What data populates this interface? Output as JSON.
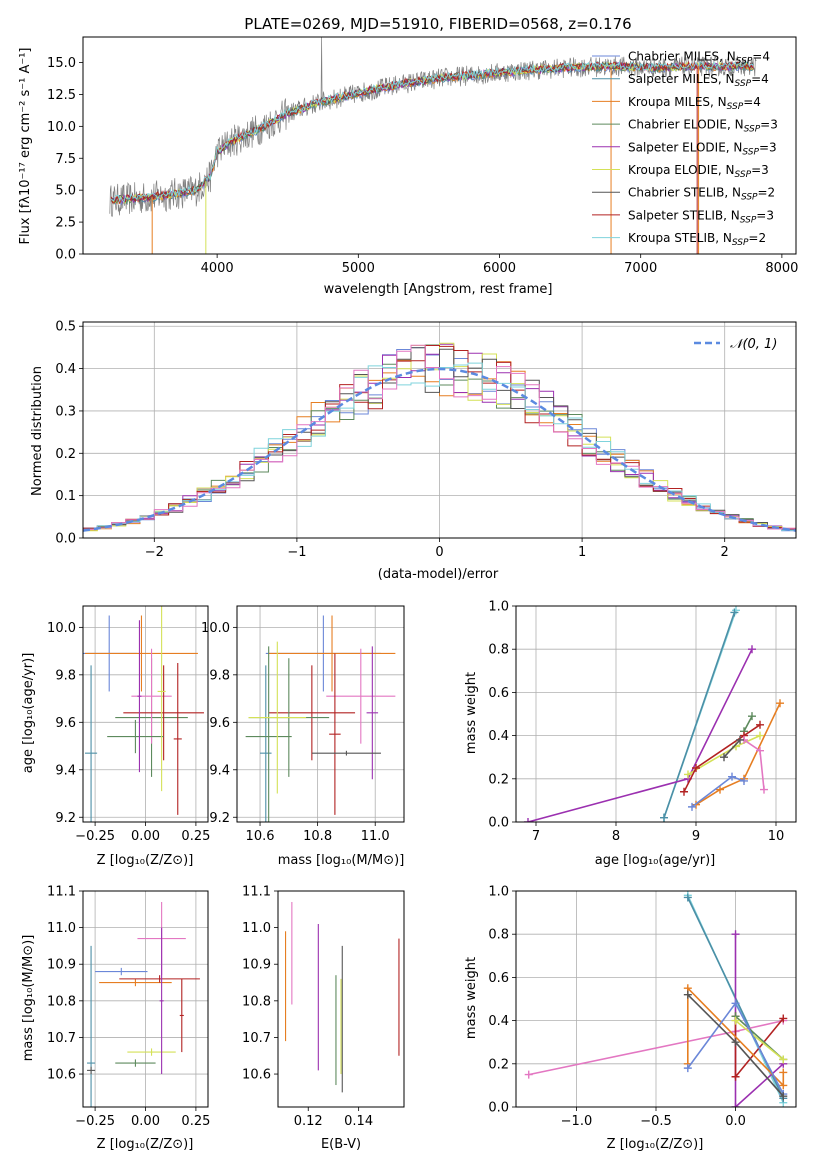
{
  "chart_data": [
    {
      "id": "spectrum",
      "type": "line",
      "title": "PLATE=0269, MJD=51910, FIBERID=0568, z=0.176",
      "xlabel": "wavelength [Angstrom, rest frame]",
      "ylabel": "Flux [fλ10⁻¹⁷ erg cm⁻² s⁻¹ A⁻¹]",
      "xlim": [
        3050,
        8100
      ],
      "ylim": [
        0,
        17
      ],
      "xticks": [
        4000,
        5000,
        6000,
        7000,
        8000
      ],
      "yticks": [
        0.0,
        2.5,
        5.0,
        7.5,
        10.0,
        12.5,
        15.0
      ],
      "legend_position": "upper-right",
      "data_color": "#808080",
      "continuum": {
        "x": [
          3250,
          3500,
          3700,
          3850,
          3950,
          4000,
          4100,
          4300,
          4500,
          4700,
          5000,
          5300,
          5600,
          5900,
          6200,
          6500,
          6800,
          7100,
          7400,
          7800
        ],
        "y": [
          4.2,
          4.4,
          4.7,
          5.0,
          6.0,
          8.0,
          8.8,
          9.8,
          11.0,
          11.8,
          12.6,
          13.3,
          13.8,
          14.1,
          14.4,
          14.6,
          14.7,
          14.6,
          14.7,
          14.7
        ]
      },
      "series": [
        {
          "name": "Chabrier MILES, N_SSP=4",
          "color": "#6b87d8"
        },
        {
          "name": "Salpeter MILES, N_SSP=4",
          "color": "#4c8fa6"
        },
        {
          "name": "Kroupa MILES, N_SSP=4",
          "color": "#e67e22"
        },
        {
          "name": "Chabrier ELODIE, N_SSP=3",
          "color": "#5d8a5d"
        },
        {
          "name": "Salpeter ELODIE, N_SSP=3",
          "color": "#9b30b0"
        },
        {
          "name": "Kroupa ELODIE, N_SSP=3",
          "color": "#d4e157"
        },
        {
          "name": "Chabrier STELIB, N_SSP=2",
          "color": "#555555"
        },
        {
          "name": "Salpeter STELIB, N_SSP=3",
          "color": "#b22222"
        },
        {
          "name": "Kroupa STELIB, N_SSP=2",
          "color": "#7fd3dc"
        }
      ]
    },
    {
      "id": "residuals",
      "type": "line",
      "xlabel": "(data-model)/error",
      "ylabel": "Normed distribution",
      "xlim": [
        -2.5,
        2.5
      ],
      "ylim": [
        0,
        0.51
      ],
      "xticks": [
        -2,
        -1,
        0,
        1,
        2
      ],
      "yticks": [
        0.0,
        0.1,
        0.2,
        0.3,
        0.4,
        0.5
      ],
      "grid": true,
      "legend_position": "upper-right",
      "gaussian": {
        "name": "𝒩(0, 1)",
        "color": "#5b8ae0"
      },
      "bin_width": 0.1,
      "colors": [
        "#6b87d8",
        "#e67e22",
        "#5d8a5d",
        "#9b30b0",
        "#d4e157",
        "#555555",
        "#b22222",
        "#7fd3dc",
        "#e377c2"
      ]
    },
    {
      "id": "age_vs_Z",
      "type": "scatter",
      "xlabel": "Z [log₁₀(Z/Z⊙)]",
      "ylabel": "age  [log₁₀(age/yr)]",
      "xlim": [
        -0.31,
        0.31
      ],
      "ylim": [
        9.18,
        10.09
      ],
      "xticks": [
        -0.25,
        0.0,
        0.25
      ],
      "xticklabels": [
        "−0.25",
        "0.00",
        "0.25"
      ],
      "yticks": [
        9.2,
        9.4,
        9.6,
        9.8,
        10.0
      ],
      "grid": true,
      "points": [
        {
          "x": -0.18,
          "y": 9.89,
          "xerr": 0.14,
          "yerr": 0.16,
          "color": "#6b87d8"
        },
        {
          "x": -0.02,
          "y": 9.89,
          "xerr": 0.28,
          "yerr": 0.16,
          "color": "#e67e22"
        },
        {
          "x": 0.03,
          "y": 9.62,
          "xerr": 0.18,
          "yerr": 0.25,
          "color": "#5d8a5d"
        },
        {
          "x": 0.03,
          "y": 9.71,
          "xerr": 0.1,
          "yerr": 0.2,
          "color": "#e377c2"
        },
        {
          "x": 0.09,
          "y": 9.64,
          "xerr": 0.2,
          "yerr": 0.2,
          "color": "#b22222"
        },
        {
          "x": -0.27,
          "y": 9.47,
          "xerr": 0.03,
          "yerr": 0.37,
          "color": "#4c8fa6"
        },
        {
          "x": -0.05,
          "y": 9.54,
          "xerr": 0.14,
          "yerr": 0.07,
          "color": "#5d8a5d"
        },
        {
          "x": 0.08,
          "y": 9.73,
          "xerr": 0.02,
          "yerr": 0.42,
          "color": "#d4e157"
        },
        {
          "x": 0.16,
          "y": 9.53,
          "xerr": 0.02,
          "yerr": 0.32,
          "color": "#b22222"
        },
        {
          "x": -0.03,
          "y": 9.71,
          "xerr": 0.01,
          "yerr": 0.32,
          "color": "#9b30b0"
        }
      ]
    },
    {
      "id": "age_vs_mass",
      "type": "scatter",
      "xlabel": "mass [log₁₀(M/M⊙)]",
      "ylabel": "",
      "xlim": [
        10.52,
        11.1
      ],
      "ylim": [
        9.18,
        10.09
      ],
      "xticks": [
        10.6,
        10.8,
        11.0
      ],
      "yticks": [
        9.2,
        9.4,
        9.6,
        9.8,
        10.0
      ],
      "grid": true,
      "points": [
        {
          "x": 10.82,
          "y": 9.89,
          "xerr": 0.2,
          "yerr": 0.16,
          "color": "#6b87d8"
        },
        {
          "x": 10.85,
          "y": 9.89,
          "xerr": 0.22,
          "yerr": 0.16,
          "color": "#e67e22"
        },
        {
          "x": 10.95,
          "y": 9.71,
          "xerr": 0.12,
          "yerr": 0.2,
          "color": "#e377c2"
        },
        {
          "x": 10.78,
          "y": 9.64,
          "xerr": 0.15,
          "yerr": 0.2,
          "color": "#b22222"
        },
        {
          "x": 10.7,
          "y": 9.62,
          "xerr": 0.14,
          "yerr": 0.25,
          "color": "#5d8a5d"
        },
        {
          "x": 10.62,
          "y": 9.47,
          "xerr": 0.02,
          "yerr": 0.37,
          "color": "#4c8fa6"
        },
        {
          "x": 10.63,
          "y": 9.54,
          "xerr": 0.08,
          "yerr": 0.38,
          "color": "#5d8a5d"
        },
        {
          "x": 10.66,
          "y": 9.62,
          "xerr": 0.1,
          "yerr": 0.32,
          "color": "#d4e157"
        },
        {
          "x": 10.86,
          "y": 9.55,
          "xerr": 0.02,
          "yerr": 0.34,
          "color": "#b22222"
        },
        {
          "x": 10.99,
          "y": 9.64,
          "xerr": 0.02,
          "yerr": 0.28,
          "color": "#9b30b0"
        },
        {
          "x": 10.9,
          "y": 9.47,
          "xerr": 0.12,
          "yerr": 0.01,
          "color": "#555555"
        }
      ]
    },
    {
      "id": "weight_vs_age",
      "type": "line",
      "xlabel": "age  [log₁₀(age/yr)]",
      "ylabel": "mass weight",
      "xlim": [
        6.75,
        10.25
      ],
      "ylim": [
        0,
        1.0
      ],
      "xticks": [
        7,
        8,
        9,
        10
      ],
      "yticks": [
        0.0,
        0.2,
        0.4,
        0.6,
        0.8,
        1.0
      ],
      "grid": true,
      "series": [
        {
          "color": "#7fd3dc",
          "x": [
            8.6,
            9.5
          ],
          "y": [
            0.02,
            0.98
          ]
        },
        {
          "color": "#4c8fa6",
          "x": [
            8.6,
            9.48
          ],
          "y": [
            0.02,
            0.97
          ]
        },
        {
          "color": "#9b30b0",
          "x": [
            6.9,
            8.9,
            9.7
          ],
          "y": [
            0.0,
            0.2,
            0.8
          ]
        },
        {
          "color": "#d4e157",
          "x": [
            8.9,
            9.5,
            9.8
          ],
          "y": [
            0.22,
            0.35,
            0.4
          ]
        },
        {
          "color": "#5d8a5d",
          "x": [
            9.6,
            9.7
          ],
          "y": [
            0.42,
            0.49
          ]
        },
        {
          "color": "#b22222",
          "x": [
            8.85,
            9.0,
            9.6,
            9.8
          ],
          "y": [
            0.14,
            0.25,
            0.4,
            0.45
          ]
        },
        {
          "color": "#e67e22",
          "x": [
            9.0,
            9.3,
            9.6,
            10.05
          ],
          "y": [
            0.08,
            0.15,
            0.2,
            0.55
          ]
        },
        {
          "color": "#6b87d8",
          "x": [
            8.95,
            9.45,
            9.6
          ],
          "y": [
            0.07,
            0.21,
            0.19
          ]
        },
        {
          "color": "#e377c2",
          "x": [
            9.6,
            9.8,
            9.85
          ],
          "y": [
            0.38,
            0.33,
            0.15
          ]
        },
        {
          "color": "#555555",
          "x": [
            9.35,
            9.55
          ],
          "y": [
            0.3,
            0.38
          ]
        }
      ]
    },
    {
      "id": "mass_vs_Z",
      "type": "scatter",
      "xlabel": "Z [log₁₀(Z/Z⊙)]",
      "ylabel": "mass [log₁₀(M/M⊙)]",
      "xlim": [
        -0.31,
        0.31
      ],
      "ylim": [
        10.51,
        11.1
      ],
      "xticks": [
        -0.25,
        0.0,
        0.25
      ],
      "xticklabels": [
        "−0.25",
        "0.00",
        "0.25"
      ],
      "yticks": [
        10.6,
        10.7,
        10.8,
        10.9,
        11.0,
        11.1
      ],
      "grid": true,
      "points": [
        {
          "x": -0.12,
          "y": 10.88,
          "xerr": 0.13,
          "yerr": 0.01,
          "color": "#6b87d8"
        },
        {
          "x": -0.05,
          "y": 10.85,
          "xerr": 0.18,
          "yerr": 0.01,
          "color": "#e67e22"
        },
        {
          "x": 0.07,
          "y": 10.86,
          "xerr": 0.2,
          "yerr": 0.01,
          "color": "#b22222"
        },
        {
          "x": 0.08,
          "y": 10.97,
          "xerr": 0.12,
          "yerr": 0.1,
          "color": "#e377c2"
        },
        {
          "x": -0.27,
          "y": 10.63,
          "xerr": 0.02,
          "yerr": 0.32,
          "color": "#4c8fa6"
        },
        {
          "x": -0.05,
          "y": 10.63,
          "xerr": 0.1,
          "yerr": 0.01,
          "color": "#5d8a5d"
        },
        {
          "x": 0.03,
          "y": 10.66,
          "xerr": 0.12,
          "yerr": 0.01,
          "color": "#d4e157"
        },
        {
          "x": 0.08,
          "y": 10.8,
          "xerr": 0.01,
          "yerr": 0.2,
          "color": "#9b30b0"
        },
        {
          "x": 0.18,
          "y": 10.76,
          "xerr": 0.01,
          "yerr": 0.1,
          "color": "#b22222"
        },
        {
          "x": -0.27,
          "y": 10.61,
          "xerr": 0.02,
          "yerr": 0.01,
          "color": "#555555"
        }
      ]
    },
    {
      "id": "mass_vs_ebv",
      "type": "scatter",
      "xlabel": "E(B-V)",
      "ylabel": "",
      "xlim": [
        0.108,
        0.158
      ],
      "ylim": [
        10.51,
        11.1
      ],
      "xticks": [
        0.12,
        0.14
      ],
      "yticks": [
        10.6,
        10.7,
        10.8,
        10.9,
        11.0,
        11.1
      ],
      "grid": false,
      "points": [
        {
          "x": 0.111,
          "y": 10.84,
          "xerr": 0,
          "yerr": 0.15,
          "color": "#e67e22"
        },
        {
          "x": 0.1135,
          "y": 10.93,
          "xerr": 0,
          "yerr": 0.14,
          "color": "#e377c2"
        },
        {
          "x": 0.124,
          "y": 10.81,
          "xerr": 0,
          "yerr": 0.2,
          "color": "#9b30b0"
        },
        {
          "x": 0.131,
          "y": 10.72,
          "xerr": 0,
          "yerr": 0.15,
          "color": "#5d8a5d"
        },
        {
          "x": 0.133,
          "y": 10.73,
          "xerr": 0,
          "yerr": 0.13,
          "color": "#d4e157"
        },
        {
          "x": 0.1335,
          "y": 10.75,
          "xerr": 0,
          "yerr": 0.2,
          "color": "#555555"
        },
        {
          "x": 0.156,
          "y": 10.81,
          "xerr": 0,
          "yerr": 0.16,
          "color": "#b22222"
        }
      ]
    },
    {
      "id": "weight_vs_Z",
      "type": "line",
      "xlabel": "Z [log₁₀(Z/Z⊙)]",
      "ylabel": "mass weight",
      "xlim": [
        -1.38,
        0.38
      ],
      "ylim": [
        0,
        1.0
      ],
      "xticks": [
        -1.0,
        -0.5,
        0.0
      ],
      "xticklabels": [
        "−1.0",
        "−0.5",
        "0.0"
      ],
      "yticks": [
        0.0,
        0.2,
        0.4,
        0.6,
        0.8,
        1.0
      ],
      "grid": true,
      "series": [
        {
          "color": "#7fd3dc",
          "x": [
            -0.3,
            0.3
          ],
          "y": [
            0.98,
            0.02
          ]
        },
        {
          "color": "#4c8fa6",
          "x": [
            -0.3,
            0.3
          ],
          "y": [
            0.97,
            0.04
          ]
        },
        {
          "color": "#e377c2",
          "x": [
            -1.3,
            0.0,
            0.3
          ],
          "y": [
            0.15,
            0.35,
            0.4
          ]
        },
        {
          "color": "#9b30b0",
          "x": [
            0.0,
            0.0,
            0.3
          ],
          "y": [
            0.8,
            0.0,
            0.2
          ]
        },
        {
          "color": "#b22222",
          "x": [
            0.0,
            0.0,
            0.3
          ],
          "y": [
            0.42,
            0.14,
            0.41
          ]
        },
        {
          "color": "#5d8a5d",
          "x": [
            0.0,
            0.3
          ],
          "y": [
            0.42,
            0.22
          ]
        },
        {
          "color": "#d4e157",
          "x": [
            0.0,
            0.3
          ],
          "y": [
            0.4,
            0.22
          ]
        },
        {
          "color": "#e67e22",
          "x": [
            -0.3,
            -0.3,
            0.3,
            0.3
          ],
          "y": [
            0.2,
            0.55,
            0.1,
            0.16
          ]
        },
        {
          "color": "#6b87d8",
          "x": [
            -0.3,
            0.0,
            0.3
          ],
          "y": [
            0.18,
            0.48,
            0.06
          ]
        },
        {
          "color": "#555555",
          "x": [
            -0.3,
            0.0,
            0.3
          ],
          "y": [
            0.52,
            0.3,
            0.05
          ]
        }
      ]
    }
  ]
}
